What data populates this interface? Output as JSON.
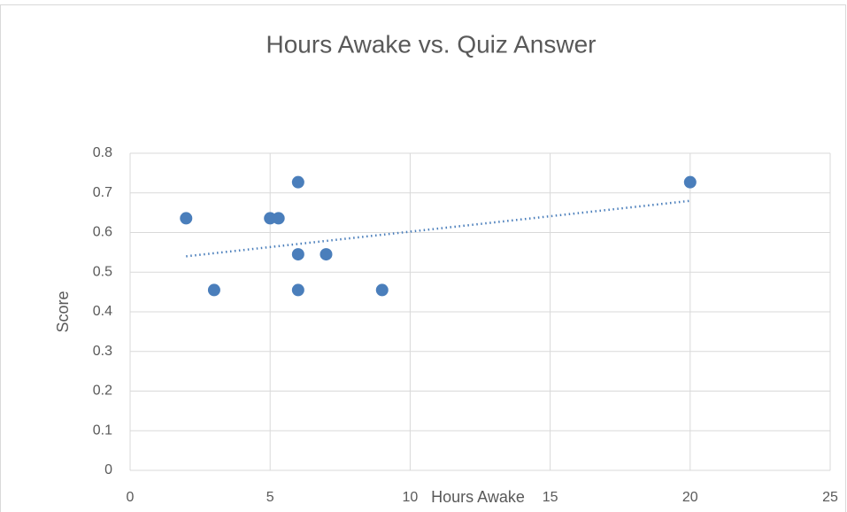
{
  "chart_data": {
    "type": "scatter",
    "title": "Hours Awake vs. Quiz Answer",
    "x_label": "Hours Awake",
    "y_label": "Score",
    "series": [
      {
        "name": "Score",
        "color": "#4a7ebb",
        "x": [
          2,
          3,
          5,
          5.3,
          6,
          6,
          6,
          7,
          9,
          20
        ],
        "values": [
          0.636,
          0.455,
          0.636,
          0.636,
          0.727,
          0.545,
          0.455,
          0.545,
          0.455,
          0.727
        ]
      }
    ],
    "trendline": {
      "x": [
        2,
        20
      ],
      "values": [
        0.54,
        0.68
      ]
    },
    "xlim": [
      0,
      25
    ],
    "xticks": [
      0,
      5,
      10,
      15,
      20,
      25
    ],
    "ylim": [
      0,
      0.8
    ],
    "yticks": [
      0,
      0.1,
      0.2,
      0.3,
      0.4,
      0.5,
      0.6,
      0.7,
      0.8
    ],
    "grid": true
  }
}
